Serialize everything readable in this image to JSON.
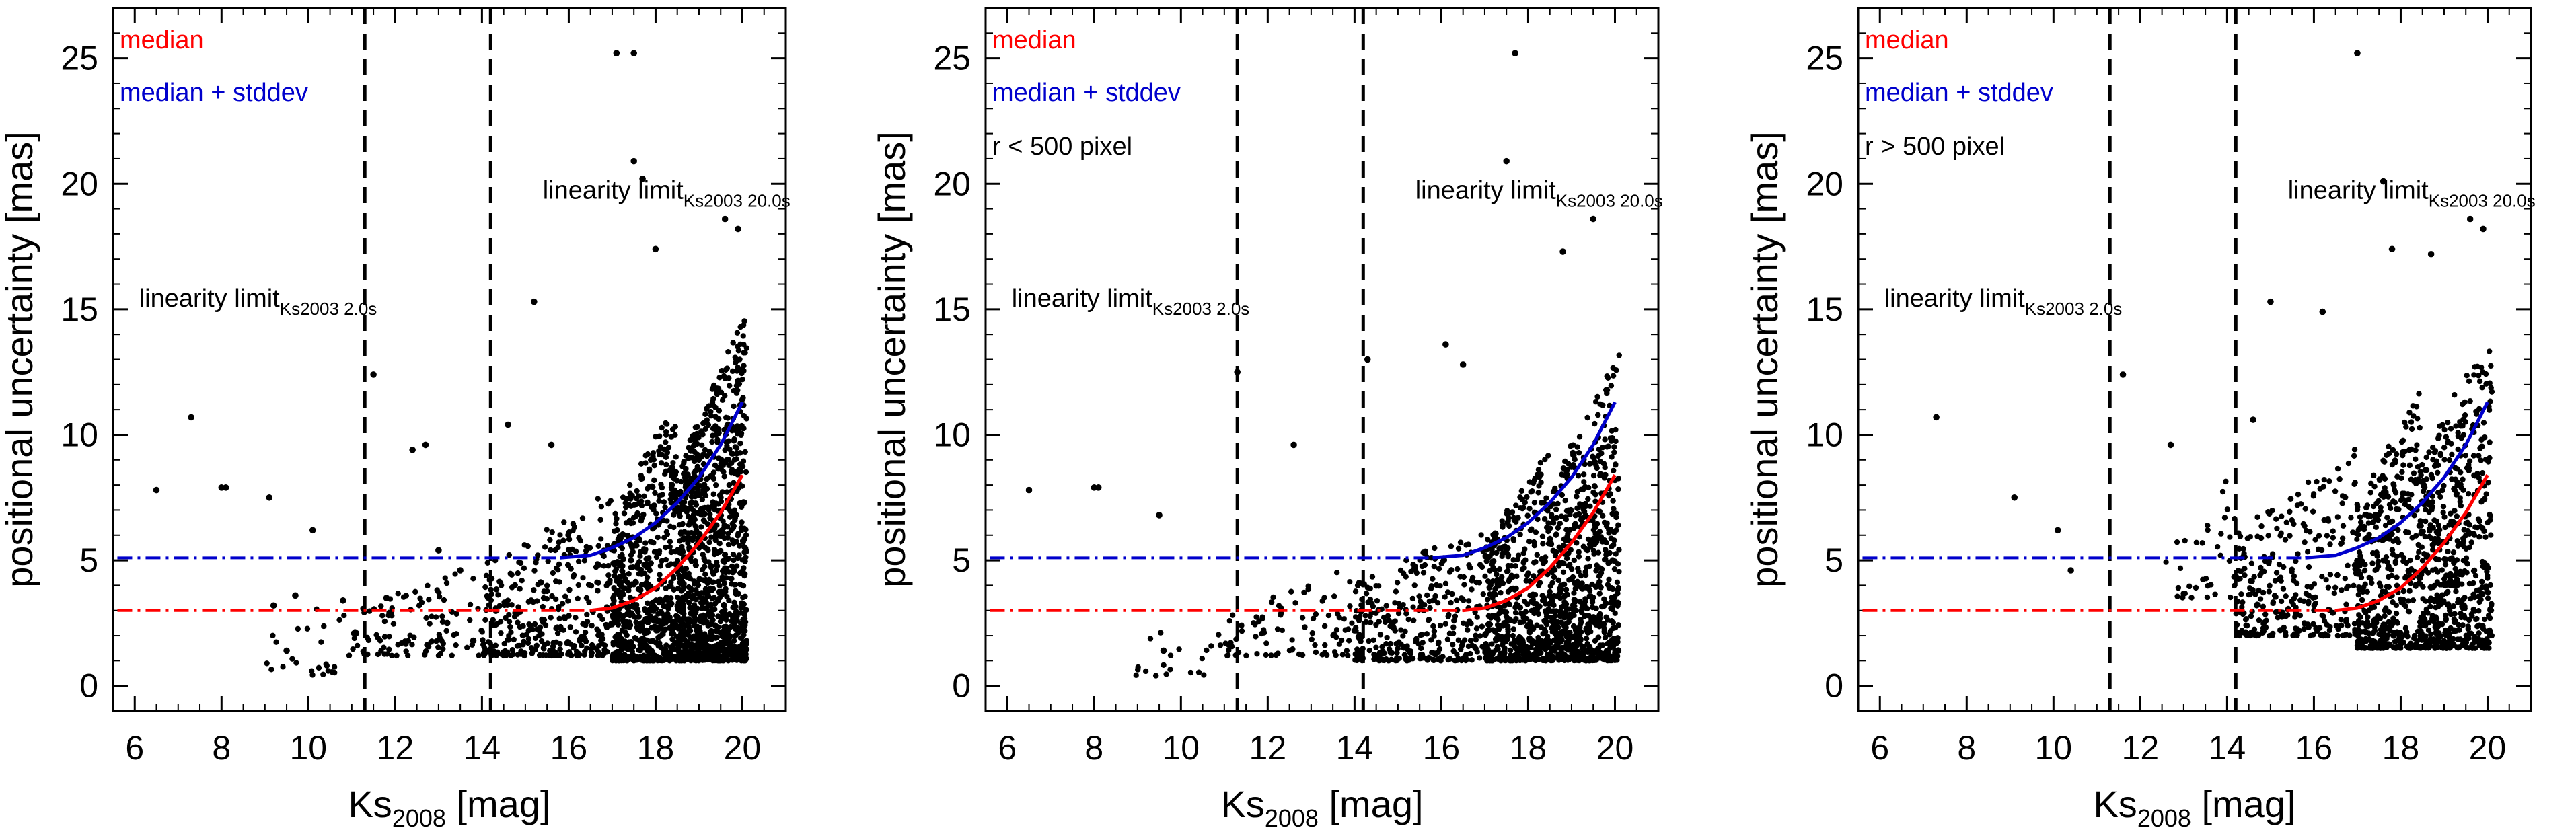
{
  "chart_data": [
    {
      "type": "scatter",
      "title": "",
      "subset_label": "",
      "xlabel": "Ks",
      "xlabel_sub": "2008",
      "xlabel_unit": "[mag]",
      "ylabel": "positional uncertainty [mas]",
      "xlim": [
        5.5,
        21.0
      ],
      "ylim": [
        -1.0,
        27.0
      ],
      "xticks": [
        6,
        8,
        10,
        12,
        14,
        16,
        18,
        20
      ],
      "yticks": [
        0,
        5,
        10,
        15,
        20,
        25
      ],
      "legend": [
        {
          "label": "median",
          "color": "#ff0000"
        },
        {
          "label": "median + stddev",
          "color": "#0000cc"
        }
      ],
      "vlines": [
        11.3,
        14.2
      ],
      "annotations": [
        {
          "text": "linearity limit",
          "sub": "Ks2003 2.0s",
          "x": 6.1,
          "y": 15.1
        },
        {
          "text": "linearity limit",
          "sub": "Ks2003 20.0s",
          "x": 15.4,
          "y": 19.4
        }
      ],
      "series": [
        {
          "name": "median",
          "color": "#ff0000",
          "x": [
            16.5,
            17.0,
            17.5,
            18.0,
            18.5,
            19.0,
            19.5,
            20.0
          ],
          "y": [
            3.0,
            3.1,
            3.4,
            3.9,
            4.7,
            5.7,
            6.9,
            8.4
          ]
        },
        {
          "name": "median + stddev",
          "color": "#0000cc",
          "x": [
            15.8,
            16.5,
            17.0,
            17.5,
            18.0,
            18.5,
            19.0,
            19.5,
            20.0
          ],
          "y": [
            5.1,
            5.2,
            5.5,
            5.9,
            6.5,
            7.3,
            8.3,
            9.6,
            11.3
          ]
        }
      ],
      "flat_median": 3.0,
      "flat_stddev": 5.1,
      "points": [
        [
          6.5,
          7.8
        ],
        [
          7.3,
          10.7
        ],
        [
          8.0,
          7.9
        ],
        [
          8.1,
          7.9
        ],
        [
          9.1,
          7.5
        ],
        [
          9.2,
          3.2
        ],
        [
          9.5,
          1.4
        ],
        [
          9.7,
          3.6
        ],
        [
          10.1,
          6.2
        ],
        [
          10.8,
          3.4
        ],
        [
          11.1,
          2.1
        ],
        [
          11.5,
          12.4
        ],
        [
          11.8,
          3.5
        ],
        [
          12.4,
          9.4
        ],
        [
          12.7,
          9.6
        ],
        [
          13.0,
          5.4
        ],
        [
          13.2,
          2.5
        ],
        [
          13.5,
          4.6
        ],
        [
          13.8,
          1.8
        ],
        [
          14.6,
          10.4
        ],
        [
          15.2,
          15.3
        ],
        [
          15.6,
          9.6
        ],
        [
          17.1,
          25.2
        ],
        [
          17.5,
          25.2
        ],
        [
          17.5,
          20.9
        ],
        [
          17.7,
          20.2
        ],
        [
          18.0,
          17.4
        ],
        [
          19.6,
          18.6
        ],
        [
          19.9,
          18.2
        ]
      ],
      "cloud": [
        {
          "xmin": 8.8,
          "xmax": 11.0,
          "ymin": 0.4,
          "ymax": 3.6,
          "n": 25
        },
        {
          "xmin": 11.0,
          "xmax": 14.0,
          "ymin": 1.2,
          "ymax": 4.8,
          "n": 100
        },
        {
          "xmin": 14.0,
          "xmax": 17.0,
          "ymin": 1.2,
          "ymax": 7.8,
          "n": 350
        },
        {
          "xmin": 17.0,
          "xmax": 18.5,
          "ymin": 1.0,
          "ymax": 11.5,
          "n": 650
        },
        {
          "xmin": 18.5,
          "xmax": 20.1,
          "ymin": 1.0,
          "ymax": 15.0,
          "n": 1100
        }
      ]
    },
    {
      "type": "scatter",
      "title": "",
      "subset_label": "r < 500 pixel",
      "xlabel": "Ks",
      "xlabel_sub": "2008",
      "xlabel_unit": "[mag]",
      "ylabel": "positional uncertainty [mas]",
      "xlim": [
        5.5,
        21.0
      ],
      "ylim": [
        -1.0,
        27.0
      ],
      "xticks": [
        6,
        8,
        10,
        12,
        14,
        16,
        18,
        20
      ],
      "yticks": [
        0,
        5,
        10,
        15,
        20,
        25
      ],
      "legend": [
        {
          "label": "median",
          "color": "#ff0000"
        },
        {
          "label": "median + stddev",
          "color": "#0000cc"
        }
      ],
      "vlines": [
        11.3,
        14.2
      ],
      "annotations": [
        {
          "text": "linearity limit",
          "sub": "Ks2003 2.0s",
          "x": 6.1,
          "y": 15.1
        },
        {
          "text": "linearity limit",
          "sub": "Ks2003 20.0s",
          "x": 15.4,
          "y": 19.4
        }
      ],
      "series": [
        {
          "name": "median",
          "color": "#ff0000",
          "x": [
            16.5,
            17.0,
            17.5,
            18.0,
            18.5,
            19.0,
            19.5,
            20.0
          ],
          "y": [
            3.0,
            3.1,
            3.4,
            3.9,
            4.7,
            5.7,
            6.9,
            8.4
          ]
        },
        {
          "name": "median + stddev",
          "color": "#0000cc",
          "x": [
            15.8,
            16.5,
            17.0,
            17.5,
            18.0,
            18.5,
            19.0,
            19.5,
            20.0
          ],
          "y": [
            5.1,
            5.2,
            5.5,
            5.9,
            6.5,
            7.3,
            8.3,
            9.6,
            11.3
          ]
        }
      ],
      "flat_median": 3.0,
      "flat_stddev": 5.1,
      "points": [
        [
          6.5,
          7.8
        ],
        [
          8.0,
          7.9
        ],
        [
          8.1,
          7.9
        ],
        [
          9.5,
          6.8
        ],
        [
          9.6,
          1.4
        ],
        [
          11.3,
          12.5
        ],
        [
          12.6,
          9.6
        ],
        [
          14.3,
          13.0
        ],
        [
          16.1,
          13.6
        ],
        [
          16.5,
          12.8
        ],
        [
          17.5,
          20.9
        ],
        [
          17.7,
          25.2
        ],
        [
          18.8,
          17.3
        ],
        [
          19.5,
          18.6
        ]
      ],
      "cloud": [
        {
          "xmin": 8.8,
          "xmax": 11.0,
          "ymin": 0.4,
          "ymax": 3.6,
          "n": 20
        },
        {
          "xmin": 11.0,
          "xmax": 14.0,
          "ymin": 1.2,
          "ymax": 4.8,
          "n": 90
        },
        {
          "xmin": 14.0,
          "xmax": 17.0,
          "ymin": 1.0,
          "ymax": 6.5,
          "n": 320
        },
        {
          "xmin": 17.0,
          "xmax": 18.5,
          "ymin": 1.0,
          "ymax": 9.5,
          "n": 480
        },
        {
          "xmin": 18.5,
          "xmax": 20.1,
          "ymin": 1.0,
          "ymax": 13.5,
          "n": 700
        }
      ]
    },
    {
      "type": "scatter",
      "title": "",
      "subset_label": "r > 500 pixel",
      "xlabel": "Ks",
      "xlabel_sub": "2008",
      "xlabel_unit": "[mag]",
      "ylabel": "positional uncertainty [mas]",
      "xlim": [
        5.5,
        21.0
      ],
      "ylim": [
        -1.0,
        27.0
      ],
      "xticks": [
        6,
        8,
        10,
        12,
        14,
        16,
        18,
        20
      ],
      "yticks": [
        0,
        5,
        10,
        15,
        20,
        25
      ],
      "legend": [
        {
          "label": "median",
          "color": "#ff0000"
        },
        {
          "label": "median + stddev",
          "color": "#0000cc"
        }
      ],
      "vlines": [
        11.3,
        14.2
      ],
      "annotations": [
        {
          "text": "linearity limit",
          "sub": "Ks2003 2.0s",
          "x": 6.1,
          "y": 15.1
        },
        {
          "text": "linearity limit",
          "sub": "Ks2003 20.0s",
          "x": 15.4,
          "y": 19.4
        }
      ],
      "series": [
        {
          "name": "median",
          "color": "#ff0000",
          "x": [
            16.5,
            17.0,
            17.5,
            18.0,
            18.5,
            19.0,
            19.5,
            20.0
          ],
          "y": [
            3.0,
            3.1,
            3.4,
            3.9,
            4.7,
            5.7,
            6.9,
            8.4
          ]
        },
        {
          "name": "median + stddev",
          "color": "#0000cc",
          "x": [
            15.8,
            16.5,
            17.0,
            17.5,
            18.0,
            18.5,
            19.0,
            19.5,
            20.0
          ],
          "y": [
            5.1,
            5.2,
            5.5,
            5.9,
            6.5,
            7.3,
            8.3,
            9.6,
            11.3
          ]
        }
      ],
      "flat_median": 3.0,
      "flat_stddev": 5.1,
      "points": [
        [
          7.3,
          10.7
        ],
        [
          9.1,
          7.5
        ],
        [
          10.1,
          6.2
        ],
        [
          10.4,
          4.6
        ],
        [
          11.6,
          12.4
        ],
        [
          12.7,
          9.6
        ],
        [
          14.6,
          10.6
        ],
        [
          15.0,
          15.3
        ],
        [
          16.2,
          14.9
        ],
        [
          17.0,
          25.2
        ],
        [
          17.6,
          20.1
        ],
        [
          17.8,
          17.4
        ],
        [
          18.7,
          17.2
        ],
        [
          19.6,
          18.6
        ],
        [
          19.9,
          18.2
        ]
      ],
      "cloud": [
        {
          "xmin": 12.5,
          "xmax": 14.2,
          "ymin": 3.5,
          "ymax": 8.5,
          "n": 35
        },
        {
          "xmin": 14.2,
          "xmax": 17.0,
          "ymin": 2.0,
          "ymax": 9.5,
          "n": 300
        },
        {
          "xmin": 17.0,
          "xmax": 18.5,
          "ymin": 1.5,
          "ymax": 12.0,
          "n": 450
        },
        {
          "xmin": 18.5,
          "xmax": 20.1,
          "ymin": 1.5,
          "ymax": 15.0,
          "n": 550
        }
      ]
    }
  ]
}
